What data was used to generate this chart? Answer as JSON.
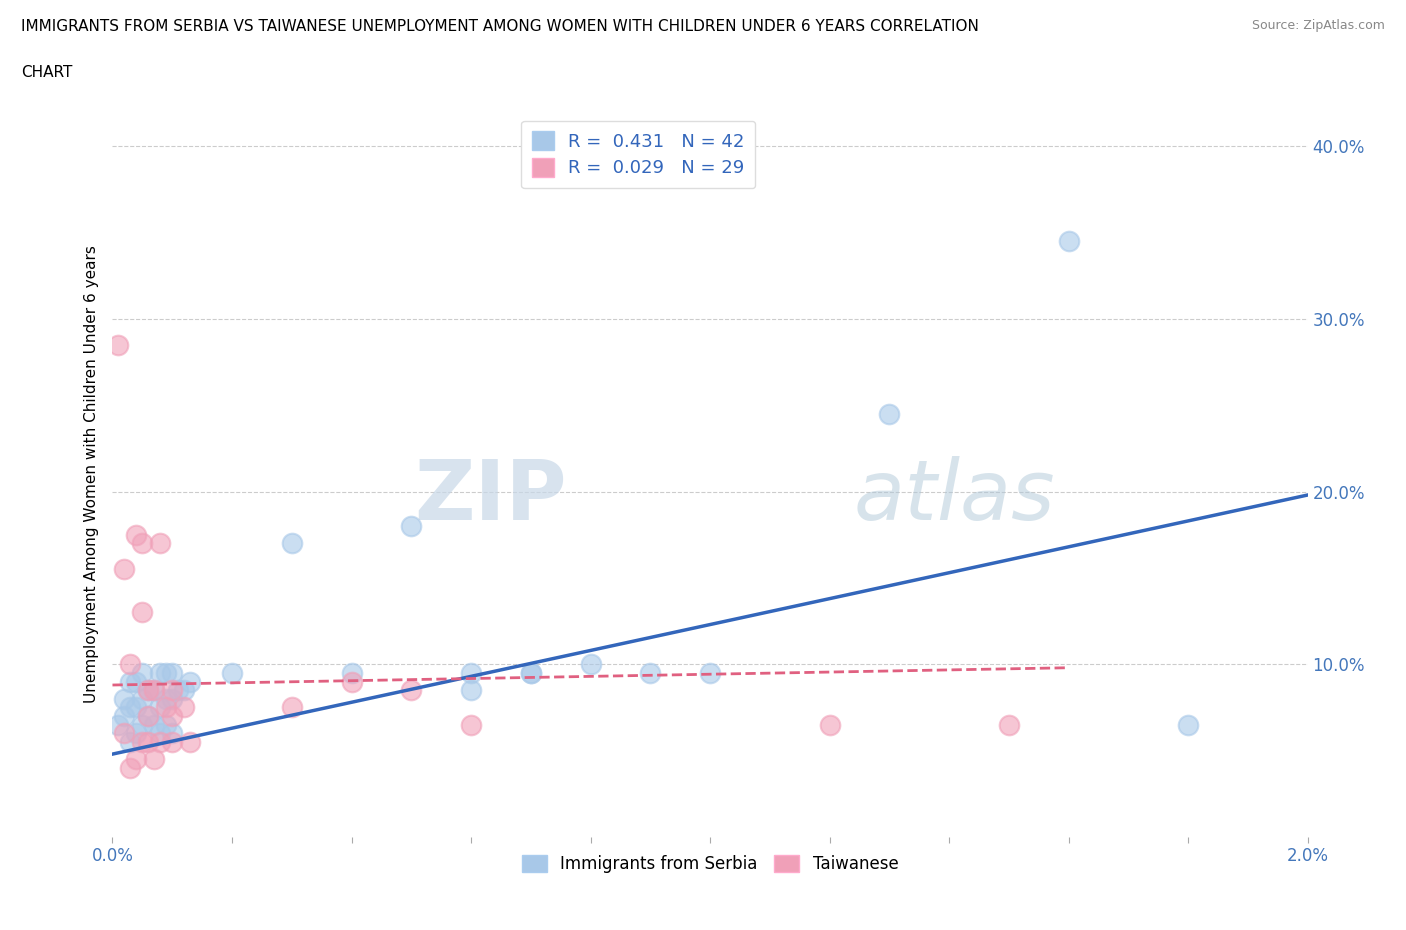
{
  "title_line1": "IMMIGRANTS FROM SERBIA VS TAIWANESE UNEMPLOYMENT AMONG WOMEN WITH CHILDREN UNDER 6 YEARS CORRELATION",
  "title_line2": "CHART",
  "source": "Source: ZipAtlas.com",
  "ylabel": "Unemployment Among Women with Children Under 6 years",
  "xlim": [
    0.0,
    0.02
  ],
  "ylim": [
    0.0,
    0.42
  ],
  "serbia_color": "#a8c8e8",
  "taiwanese_color": "#f0a0b8",
  "serbia_line_color": "#3366bb",
  "taiwanese_line_color": "#e06080",
  "serbia_R": 0.431,
  "serbia_N": 42,
  "taiwanese_R": 0.029,
  "taiwanese_N": 29,
  "watermark_zip": "ZIP",
  "watermark_atlas": "atlas",
  "grid_color": "#cccccc",
  "serbia_scatter_x": [
    0.0001,
    0.0002,
    0.0002,
    0.0003,
    0.0003,
    0.0003,
    0.0004,
    0.0004,
    0.0004,
    0.0005,
    0.0005,
    0.0005,
    0.0006,
    0.0006,
    0.0007,
    0.0007,
    0.0008,
    0.0008,
    0.0008,
    0.0009,
    0.0009,
    0.0009,
    0.001,
    0.001,
    0.001,
    0.0011,
    0.0012,
    0.0013,
    0.002,
    0.003,
    0.004,
    0.005,
    0.006,
    0.006,
    0.007,
    0.007,
    0.008,
    0.009,
    0.01,
    0.013,
    0.016,
    0.018
  ],
  "serbia_scatter_y": [
    0.065,
    0.07,
    0.08,
    0.055,
    0.075,
    0.09,
    0.06,
    0.075,
    0.09,
    0.065,
    0.08,
    0.095,
    0.07,
    0.085,
    0.065,
    0.085,
    0.06,
    0.075,
    0.095,
    0.065,
    0.08,
    0.095,
    0.06,
    0.08,
    0.095,
    0.085,
    0.085,
    0.09,
    0.095,
    0.17,
    0.095,
    0.18,
    0.085,
    0.095,
    0.095,
    0.095,
    0.1,
    0.095,
    0.095,
    0.245,
    0.345,
    0.065
  ],
  "taiwanese_scatter_x": [
    0.0001,
    0.0002,
    0.0002,
    0.0003,
    0.0003,
    0.0004,
    0.0004,
    0.0005,
    0.0005,
    0.0005,
    0.0006,
    0.0006,
    0.0006,
    0.0007,
    0.0007,
    0.0008,
    0.0008,
    0.0009,
    0.001,
    0.001,
    0.001,
    0.0012,
    0.0013,
    0.003,
    0.004,
    0.005,
    0.006,
    0.012,
    0.015
  ],
  "taiwanese_scatter_y": [
    0.285,
    0.06,
    0.155,
    0.04,
    0.1,
    0.045,
    0.175,
    0.055,
    0.13,
    0.17,
    0.055,
    0.07,
    0.085,
    0.045,
    0.085,
    0.055,
    0.17,
    0.075,
    0.055,
    0.07,
    0.085,
    0.075,
    0.055,
    0.075,
    0.09,
    0.085,
    0.065,
    0.065,
    0.065
  ],
  "serbia_trend_x": [
    0.0,
    0.02
  ],
  "serbia_trend_y": [
    0.048,
    0.198
  ],
  "taiwanese_trend_x": [
    0.0,
    0.016
  ],
  "taiwanese_trend_y": [
    0.088,
    0.098
  ]
}
